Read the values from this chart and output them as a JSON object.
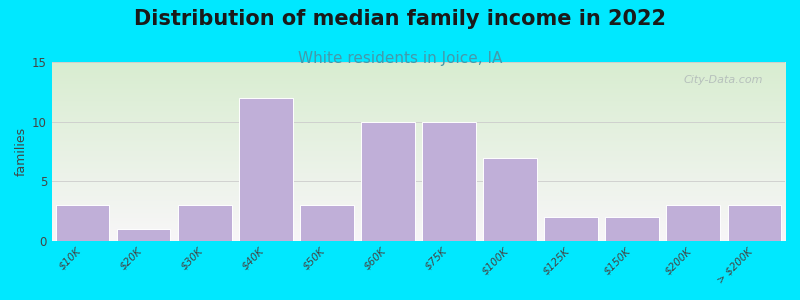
{
  "title": "Distribution of median family income in 2022",
  "subtitle": "White residents in Joice, IA",
  "ylabel": "families",
  "categories": [
    "$10K",
    "$20K",
    "$30K",
    "$40K",
    "$50K",
    "$60K",
    "$75K",
    "$100K",
    "$125K",
    "$150K",
    "$200K",
    "> $200K"
  ],
  "values": [
    3,
    1,
    3,
    12,
    3,
    10,
    10,
    7,
    2,
    2,
    3,
    3
  ],
  "ylim": [
    0,
    15
  ],
  "yticks": [
    0,
    5,
    10,
    15
  ],
  "bar_color": "#c0afd8",
  "bar_edge_color": "#ffffff",
  "background_outer": "#00e8ff",
  "bg_top_color": "#d8edd0",
  "bg_bottom_color": "#f8f6f8",
  "title_fontsize": 15,
  "subtitle_fontsize": 11,
  "subtitle_color": "#4499aa",
  "watermark_text": "City-Data.com",
  "watermark_color": "#b0b8b8"
}
